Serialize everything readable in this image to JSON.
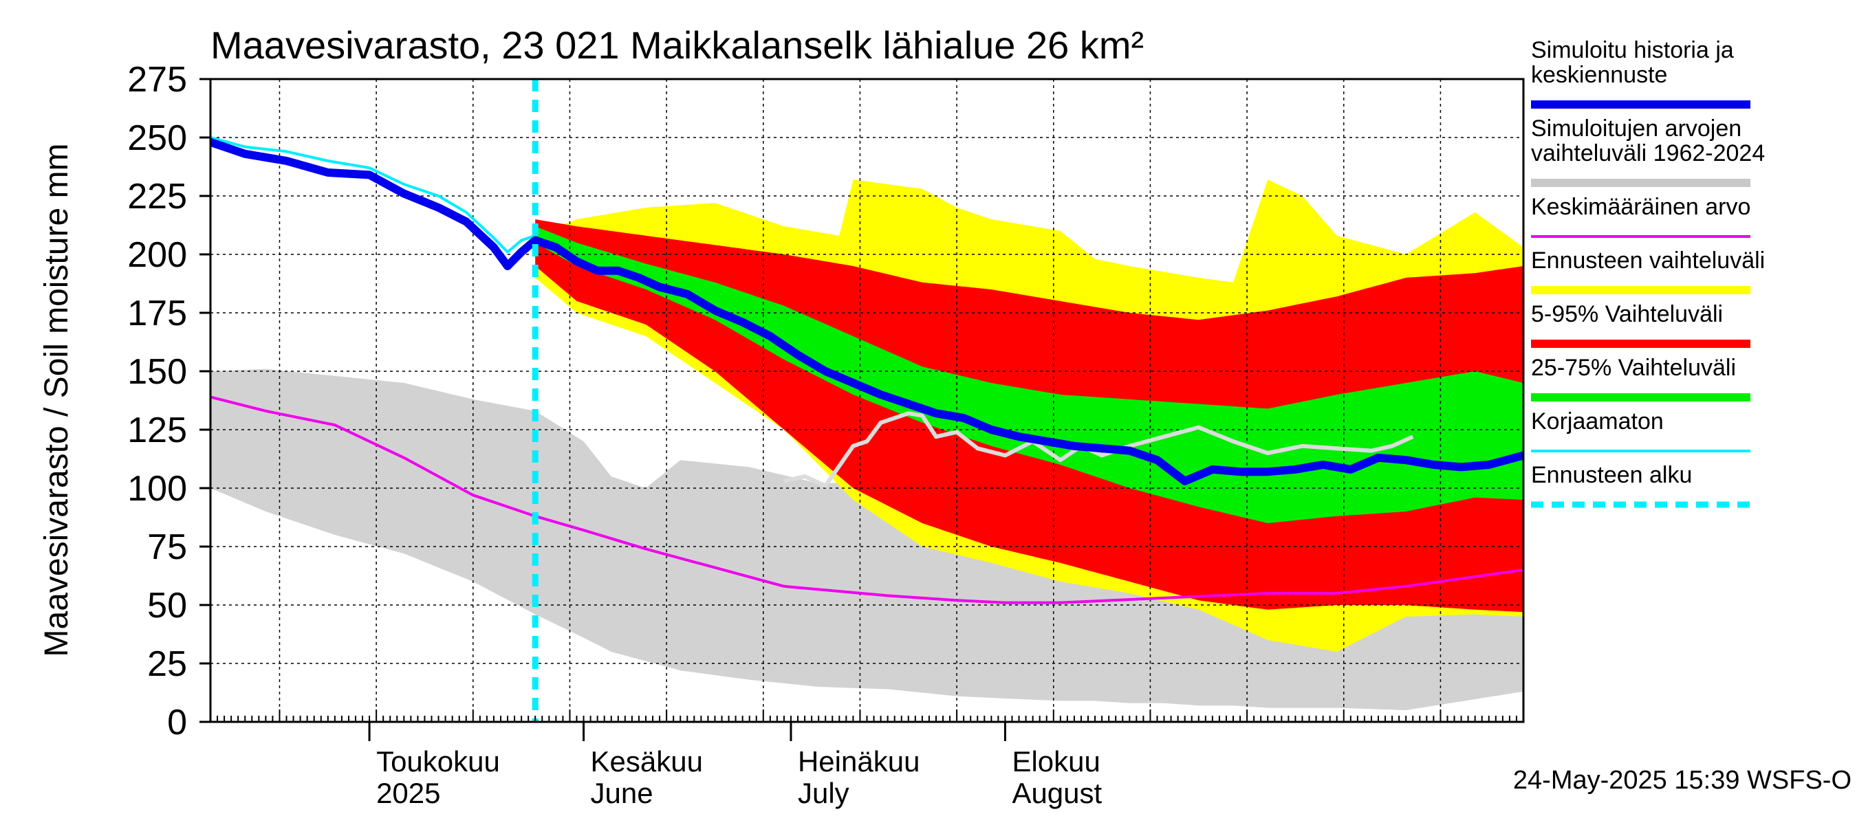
{
  "chart_data": {
    "type": "area",
    "title": "Maavesivarasto, 23 021 Maikkalanselk lähialue 26 km²",
    "ylabel": "Maavesivarasto / Soil moisture   mm",
    "ylim": [
      0,
      275
    ],
    "yticks": [
      "0",
      "25",
      "50",
      "75",
      "100",
      "125",
      "150",
      "175",
      "200",
      "225",
      "250",
      "275"
    ],
    "day_range": [
      -53,
      137
    ],
    "forecast_start_day": -6,
    "month_ticks": [
      {
        "label": "Toukokuu",
        "sub": "2025",
        "day": -30
      },
      {
        "label": "Kesäkuu",
        "sub": "June",
        "day": 1
      },
      {
        "label": "Heinäkuu",
        "sub": "July",
        "day": 31
      },
      {
        "label": "Elokuu",
        "sub": "August",
        "day": 62
      }
    ],
    "timestamp": "24-May-2025 15:39 WSFS-O",
    "legend": [
      {
        "label": "Simuloitu historia ja keskiennuste",
        "color": "#0000ee",
        "style": "thick"
      },
      {
        "label": "Simuloitujen arvojen vaihteluväli 1962-2024",
        "color": "#c8c8c8",
        "style": "thick"
      },
      {
        "label": "Keskimääräinen arvo",
        "color": "#ee00ee",
        "style": "thin"
      },
      {
        "label": "Ennusteen vaihteluväli",
        "color": "#ffff00",
        "style": "thick"
      },
      {
        "label": "5-95% Vaihteluväli",
        "color": "#ff0000",
        "style": "thick"
      },
      {
        "label": "25-75% Vaihteluväli",
        "color": "#00ee00",
        "style": "thick"
      },
      {
        "label": "Korjaamaton",
        "color": "#00eeff",
        "style": "thin"
      },
      {
        "label": "Ennusteen alku",
        "color": "#00eeff",
        "style": "dashed"
      }
    ],
    "series": {
      "hist_range": {
        "x": [
          -53,
          -45,
          -35,
          -25,
          -15,
          -6,
          1,
          5,
          10,
          15,
          25,
          35,
          45,
          55,
          62,
          70,
          75,
          80,
          85,
          90,
          95,
          100,
          110,
          120,
          137
        ],
        "upper": [
          150,
          151,
          148,
          145,
          138,
          133,
          120,
          105,
          100,
          112,
          109,
          102,
          103,
          94,
          90,
          90,
          88,
          85,
          83,
          78,
          76,
          70,
          64,
          56,
          50
        ],
        "lower": [
          100,
          90,
          80,
          72,
          60,
          46,
          36,
          30,
          26,
          22,
          18,
          15,
          14,
          11,
          10,
          9,
          9,
          8,
          8,
          7,
          7,
          6,
          6,
          5,
          13
        ]
      },
      "mean": {
        "x": [
          -53,
          -45,
          -35,
          -25,
          -15,
          -6,
          1,
          10,
          20,
          30,
          45,
          55,
          62,
          70,
          85,
          100,
          110,
          120,
          137
        ],
        "y": [
          139,
          133,
          127,
          113,
          97,
          88,
          82,
          74,
          66,
          58,
          54,
          52,
          51,
          51,
          53,
          55,
          55,
          58,
          65
        ]
      },
      "sim_history": {
        "x": [
          -53,
          -48,
          -42,
          -36,
          -30,
          -25,
          -20,
          -16,
          -12,
          -10,
          -8,
          -6
        ],
        "y": [
          248,
          243,
          240,
          235,
          234,
          226,
          220,
          214,
          203,
          195,
          201,
          206
        ]
      },
      "uncorrected": {
        "x": [
          -53,
          -48,
          -42,
          -36,
          -30,
          -25,
          -20,
          -16,
          -12,
          -10,
          -8,
          -6
        ],
        "y": [
          250,
          246,
          244,
          240,
          237,
          230,
          225,
          218,
          207,
          201,
          206,
          208
        ]
      },
      "gray_line": {
        "x": [
          30,
          33,
          36,
          40,
          42,
          44,
          46,
          48,
          50,
          52,
          55,
          58,
          62,
          66,
          70,
          73,
          76,
          80,
          85,
          90,
          95,
          100,
          105,
          110,
          115,
          118,
          121
        ],
        "y": [
          103,
          105,
          101,
          118,
          120,
          128,
          130,
          132,
          131,
          122,
          124,
          117,
          114,
          120,
          112,
          118,
          114,
          118,
          122,
          126,
          120,
          115,
          118,
          117,
          116,
          118,
          122
        ]
      },
      "forecast_max": {
        "x": [
          -6,
          0,
          10,
          20,
          30,
          38,
          40,
          45,
          50,
          55,
          60,
          70,
          75,
          80,
          90,
          95,
          100,
          105,
          110,
          120,
          130,
          137
        ],
        "y": [
          208,
          215,
          220,
          222,
          212,
          208,
          232,
          230,
          228,
          220,
          215,
          210,
          198,
          195,
          190,
          188,
          232,
          225,
          208,
          200,
          218,
          203
        ]
      },
      "p95": {
        "x": [
          -6,
          0,
          10,
          20,
          30,
          40,
          50,
          60,
          70,
          80,
          90,
          100,
          110,
          120,
          130,
          137
        ],
        "y": [
          215,
          212,
          208,
          204,
          200,
          195,
          188,
          185,
          180,
          175,
          172,
          176,
          182,
          190,
          192,
          195
        ]
      },
      "p75": {
        "x": [
          -6,
          0,
          10,
          20,
          30,
          40,
          50,
          60,
          70,
          80,
          90,
          100,
          110,
          120,
          130,
          137
        ],
        "y": [
          212,
          205,
          196,
          188,
          178,
          165,
          152,
          145,
          140,
          138,
          136,
          134,
          140,
          145,
          150,
          145
        ]
      },
      "median": {
        "x": [
          -6,
          -3,
          0,
          3,
          6,
          9,
          12,
          16,
          20,
          24,
          28,
          32,
          36,
          40,
          44,
          48,
          52,
          56,
          60,
          64,
          68,
          72,
          76,
          80,
          84,
          88,
          92,
          96,
          100,
          104,
          108,
          112,
          116,
          120,
          124,
          128,
          132,
          137
        ],
        "y": [
          206,
          203,
          197,
          193,
          193,
          190,
          186,
          183,
          176,
          171,
          165,
          157,
          150,
          145,
          140,
          136,
          132,
          130,
          125,
          122,
          120,
          118,
          117,
          116,
          112,
          103,
          108,
          107,
          107,
          108,
          110,
          108,
          113,
          112,
          110,
          109,
          110,
          114
        ]
      },
      "p25": {
        "x": [
          -6,
          0,
          10,
          20,
          30,
          40,
          50,
          60,
          70,
          80,
          90,
          100,
          110,
          120,
          130,
          137
        ],
        "y": [
          205,
          195,
          185,
          172,
          155,
          140,
          128,
          118,
          110,
          100,
          92,
          85,
          88,
          90,
          96,
          95
        ]
      },
      "p5": {
        "x": [
          -6,
          0,
          10,
          20,
          30,
          40,
          50,
          60,
          70,
          80,
          90,
          100,
          110,
          120,
          130,
          137
        ],
        "y": [
          195,
          180,
          170,
          150,
          125,
          100,
          85,
          75,
          68,
          60,
          52,
          48,
          50,
          50,
          48,
          47
        ]
      },
      "forecast_min": {
        "x": [
          -6,
          0,
          10,
          15,
          20,
          30,
          40,
          50,
          60,
          70,
          80,
          90,
          100,
          110,
          120,
          130,
          137
        ],
        "y": [
          190,
          175,
          165,
          155,
          145,
          125,
          95,
          75,
          68,
          60,
          55,
          48,
          35,
          30,
          45,
          46,
          45
        ]
      }
    }
  }
}
